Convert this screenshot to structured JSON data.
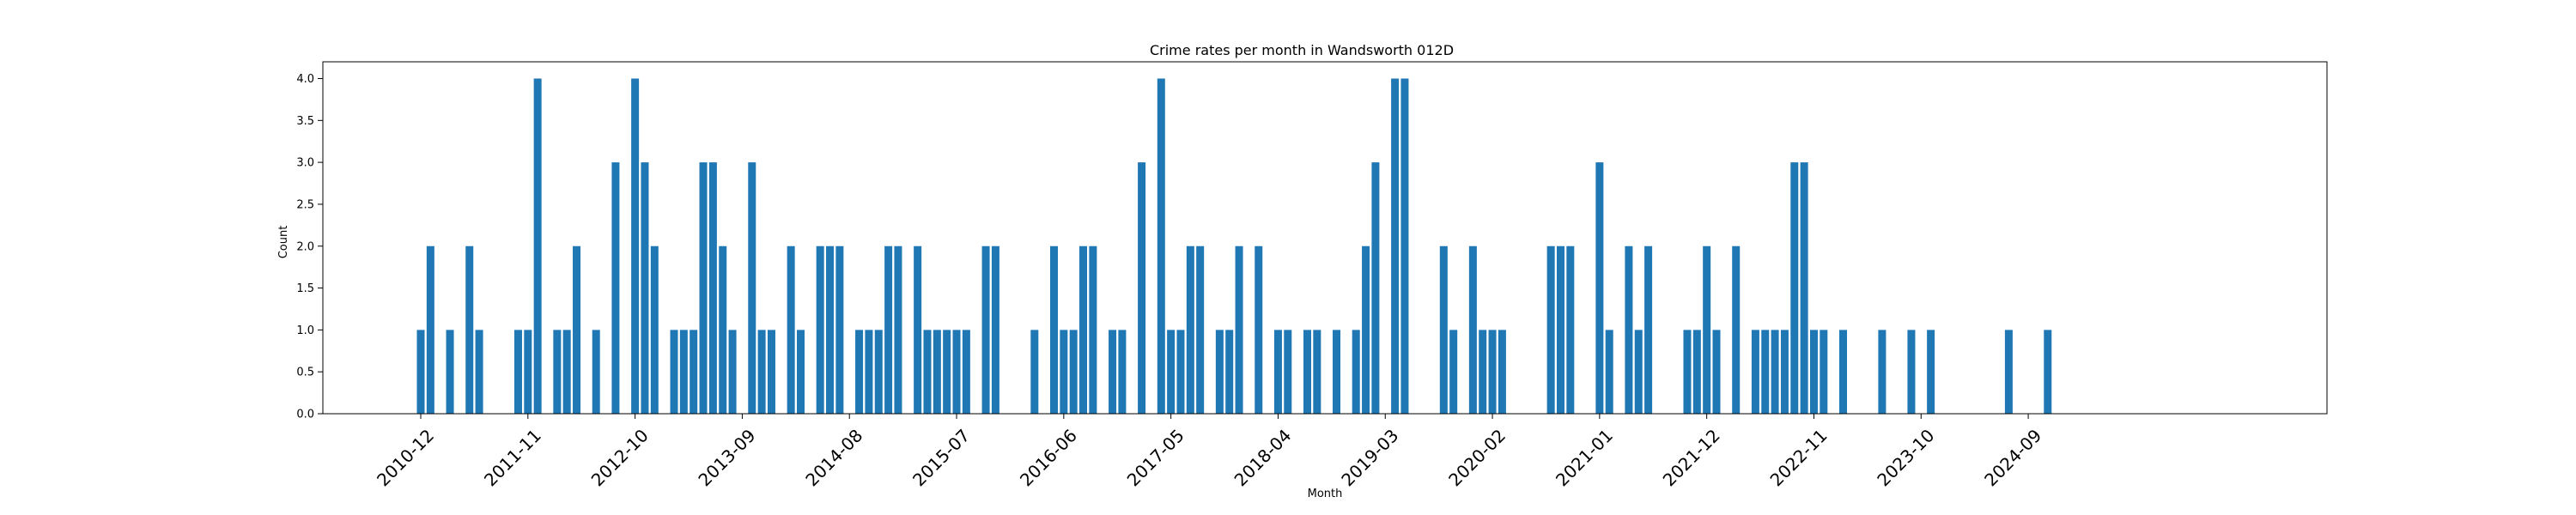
{
  "chart_data": {
    "type": "bar",
    "title": "Crime rates per month in Wandsworth 012D",
    "xlabel": "Month",
    "ylabel": "Count",
    "ylim": [
      0,
      4.2
    ],
    "yticks": [
      "0.0",
      "0.5",
      "1.0",
      "1.5",
      "2.0",
      "2.5",
      "3.0",
      "3.5",
      "4.0"
    ],
    "xtick_labels": [
      "2010-12",
      "2011-11",
      "2012-10",
      "2013-09",
      "2014-08",
      "2015-07",
      "2016-06",
      "2017-05",
      "2018-04",
      "2019-03",
      "2020-02",
      "2021-01",
      "2021-12",
      "2022-11",
      "2023-10",
      "2024-09"
    ],
    "bar_color": "#1f77b4",
    "grid": false,
    "legend": "none",
    "points": [
      {
        "x": "2010-12",
        "y": 1
      },
      {
        "x": "2011-01",
        "y": 2
      },
      {
        "x": "2011-03",
        "y": 1
      },
      {
        "x": "2011-05",
        "y": 2
      },
      {
        "x": "2011-06",
        "y": 1
      },
      {
        "x": "2011-10",
        "y": 1
      },
      {
        "x": "2011-11",
        "y": 1
      },
      {
        "x": "2011-12",
        "y": 4
      },
      {
        "x": "2012-02",
        "y": 1
      },
      {
        "x": "2012-03",
        "y": 1
      },
      {
        "x": "2012-04",
        "y": 2
      },
      {
        "x": "2012-06",
        "y": 1
      },
      {
        "x": "2012-08",
        "y": 3
      },
      {
        "x": "2012-10",
        "y": 4
      },
      {
        "x": "2012-11",
        "y": 3
      },
      {
        "x": "2012-12",
        "y": 2
      },
      {
        "x": "2013-02",
        "y": 1
      },
      {
        "x": "2013-03",
        "y": 1
      },
      {
        "x": "2013-04",
        "y": 1
      },
      {
        "x": "2013-05",
        "y": 3
      },
      {
        "x": "2013-06",
        "y": 3
      },
      {
        "x": "2013-07",
        "y": 2
      },
      {
        "x": "2013-08",
        "y": 1
      },
      {
        "x": "2013-10",
        "y": 3
      },
      {
        "x": "2013-11",
        "y": 1
      },
      {
        "x": "2013-12",
        "y": 1
      },
      {
        "x": "2014-02",
        "y": 2
      },
      {
        "x": "2014-03",
        "y": 1
      },
      {
        "x": "2014-05",
        "y": 2
      },
      {
        "x": "2014-06",
        "y": 2
      },
      {
        "x": "2014-07",
        "y": 2
      },
      {
        "x": "2014-09",
        "y": 1
      },
      {
        "x": "2014-10",
        "y": 1
      },
      {
        "x": "2014-11",
        "y": 1
      },
      {
        "x": "2014-12",
        "y": 2
      },
      {
        "x": "2015-01",
        "y": 2
      },
      {
        "x": "2015-03",
        "y": 2
      },
      {
        "x": "2015-04",
        "y": 1
      },
      {
        "x": "2015-05",
        "y": 1
      },
      {
        "x": "2015-06",
        "y": 1
      },
      {
        "x": "2015-07",
        "y": 1
      },
      {
        "x": "2015-08",
        "y": 1
      },
      {
        "x": "2015-10",
        "y": 2
      },
      {
        "x": "2015-11",
        "y": 2
      },
      {
        "x": "2016-03",
        "y": 1
      },
      {
        "x": "2016-05",
        "y": 2
      },
      {
        "x": "2016-06",
        "y": 1
      },
      {
        "x": "2016-07",
        "y": 1
      },
      {
        "x": "2016-08",
        "y": 2
      },
      {
        "x": "2016-09",
        "y": 2
      },
      {
        "x": "2016-11",
        "y": 1
      },
      {
        "x": "2016-12",
        "y": 1
      },
      {
        "x": "2017-02",
        "y": 3
      },
      {
        "x": "2017-04",
        "y": 4
      },
      {
        "x": "2017-05",
        "y": 1
      },
      {
        "x": "2017-06",
        "y": 1
      },
      {
        "x": "2017-07",
        "y": 2
      },
      {
        "x": "2017-08",
        "y": 2
      },
      {
        "x": "2017-10",
        "y": 1
      },
      {
        "x": "2017-11",
        "y": 1
      },
      {
        "x": "2017-12",
        "y": 2
      },
      {
        "x": "2018-02",
        "y": 2
      },
      {
        "x": "2018-04",
        "y": 1
      },
      {
        "x": "2018-05",
        "y": 1
      },
      {
        "x": "2018-07",
        "y": 1
      },
      {
        "x": "2018-08",
        "y": 1
      },
      {
        "x": "2018-10",
        "y": 1
      },
      {
        "x": "2018-12",
        "y": 1
      },
      {
        "x": "2019-01",
        "y": 2
      },
      {
        "x": "2019-02",
        "y": 3
      },
      {
        "x": "2019-04",
        "y": 4
      },
      {
        "x": "2019-05",
        "y": 4
      },
      {
        "x": "2019-09",
        "y": 2
      },
      {
        "x": "2019-10",
        "y": 1
      },
      {
        "x": "2019-12",
        "y": 2
      },
      {
        "x": "2020-01",
        "y": 1
      },
      {
        "x": "2020-02",
        "y": 1
      },
      {
        "x": "2020-03",
        "y": 1
      },
      {
        "x": "2020-08",
        "y": 2
      },
      {
        "x": "2020-09",
        "y": 2
      },
      {
        "x": "2020-10",
        "y": 2
      },
      {
        "x": "2021-01",
        "y": 3
      },
      {
        "x": "2021-02",
        "y": 1
      },
      {
        "x": "2021-04",
        "y": 2
      },
      {
        "x": "2021-05",
        "y": 1
      },
      {
        "x": "2021-06",
        "y": 2
      },
      {
        "x": "2021-10",
        "y": 1
      },
      {
        "x": "2021-11",
        "y": 1
      },
      {
        "x": "2021-12",
        "y": 2
      },
      {
        "x": "2022-01",
        "y": 1
      },
      {
        "x": "2022-03",
        "y": 2
      },
      {
        "x": "2022-05",
        "y": 1
      },
      {
        "x": "2022-06",
        "y": 1
      },
      {
        "x": "2022-07",
        "y": 1
      },
      {
        "x": "2022-08",
        "y": 1
      },
      {
        "x": "2022-09",
        "y": 3
      },
      {
        "x": "2022-10",
        "y": 3
      },
      {
        "x": "2022-11",
        "y": 1
      },
      {
        "x": "2022-12",
        "y": 1
      },
      {
        "x": "2023-02",
        "y": 1
      },
      {
        "x": "2023-06",
        "y": 1
      },
      {
        "x": "2023-09",
        "y": 1
      },
      {
        "x": "2023-11",
        "y": 1
      },
      {
        "x": "2024-07",
        "y": 1
      },
      {
        "x": "2024-11",
        "y": 1
      }
    ]
  }
}
